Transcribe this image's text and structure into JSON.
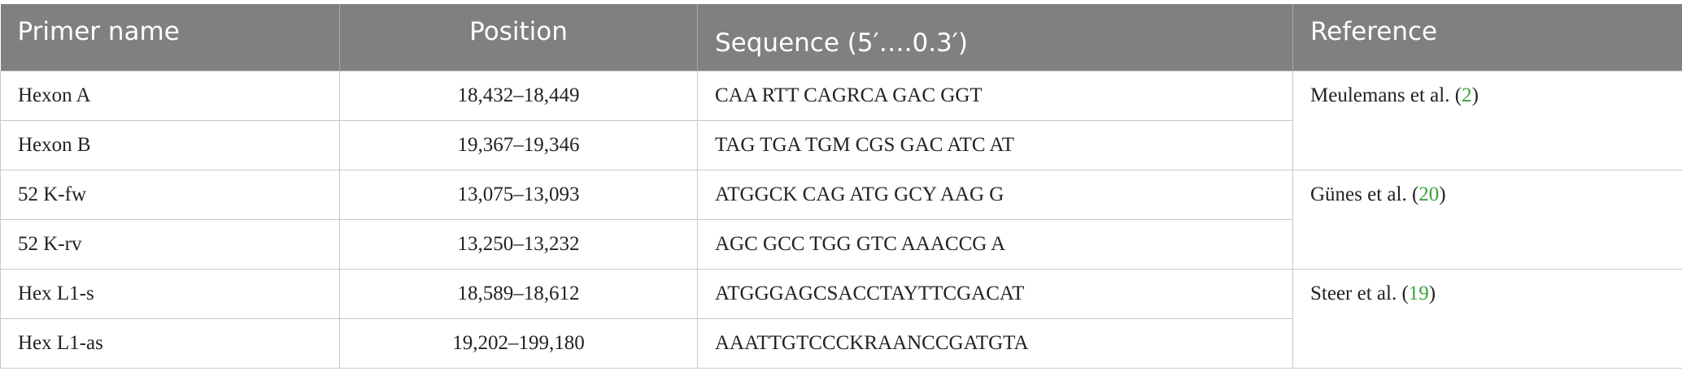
{
  "table": {
    "header": [
      "Primer name",
      "Position",
      "Sequence (5′….0.3′)",
      "Reference"
    ],
    "rows": [
      [
        "Hexon A",
        "18,432–18,449",
        "CAA RTT CAGRCA GAC GGT"
      ],
      [
        "Hexon B",
        "19,367–19,346",
        "TAG TGA TGM CGS GAC ATC AT"
      ],
      [
        "52 K-fw",
        "13,075–13,093",
        "ATGGCK CAG ATG GCY AAG G"
      ],
      [
        "52 K-rv",
        "13,250–13,232",
        "AGC GCC TGG GTC AAACCG A"
      ],
      [
        "Hex L1-s",
        "18,589–18,612",
        "ATGGGAGCSACCTAYTTCGACAT"
      ],
      [
        "Hex L1-as",
        "19,202–199,180",
        "AAATTGTCCCKRAANCCGATGTA"
      ]
    ],
    "references": [
      {
        "prefix": "Meulemans et al. (",
        "citation": "2",
        "suffix": ")"
      },
      {
        "prefix": "Günes et al. (",
        "citation": "20",
        "suffix": ")"
      },
      {
        "prefix": "Steer et al. (",
        "citation": "19",
        "suffix": ")"
      }
    ]
  }
}
